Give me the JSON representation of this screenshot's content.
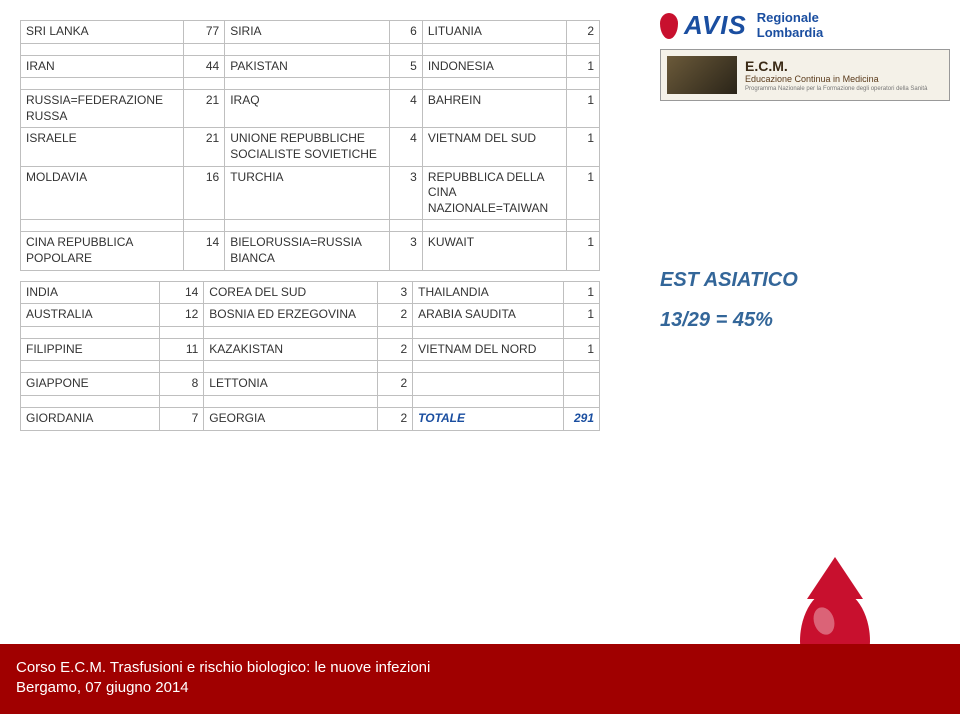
{
  "tables": {
    "upper": {
      "rows": [
        [
          "SRI LANKA",
          "77",
          "SIRIA",
          "6",
          "LITUANIA",
          "2"
        ],
        [
          "",
          "",
          "",
          "",
          "",
          ""
        ],
        [
          "IRAN",
          "44",
          "PAKISTAN",
          "5",
          "INDONESIA",
          "1"
        ],
        [
          "",
          "",
          "",
          "",
          "",
          ""
        ],
        [
          "RUSSIA=FEDERAZIONE RUSSA",
          "21",
          "IRAQ",
          "4",
          "BAHREIN",
          "1"
        ],
        [
          "ISRAELE",
          "21",
          "UNIONE REPUBBLICHE SOCIALISTE SOVIETICHE",
          "4",
          "VIETNAM DEL SUD",
          "1"
        ],
        [
          "MOLDAVIA",
          "16",
          "TURCHIA",
          "3",
          "REPUBBLICA DELLA CINA NAZIONALE=TAIWAN",
          "1"
        ],
        [
          "",
          "",
          "",
          "",
          "",
          ""
        ],
        [
          "CINA REPUBBLICA POPOLARE",
          "14",
          "BIELORUSSIA=RUSSIA BIANCA",
          "3",
          "KUWAIT",
          "1"
        ]
      ]
    },
    "lower": {
      "rows": [
        [
          "INDIA",
          "14",
          "COREA DEL SUD",
          "3",
          "THAILANDIA",
          "1"
        ],
        [
          "AUSTRALIA",
          "12",
          "BOSNIA ED ERZEGOVINA",
          "2",
          "ARABIA SAUDITA",
          "1"
        ],
        [
          "",
          "",
          "",
          "",
          "",
          ""
        ],
        [
          "FILIPPINE",
          "11",
          "KAZAKISTAN",
          "2",
          "VIETNAM DEL NORD",
          "1"
        ],
        [
          "",
          "",
          "",
          "",
          "",
          ""
        ],
        [
          "GIAPPONE",
          "8",
          "LETTONIA",
          "2",
          "",
          ""
        ],
        [
          "",
          "",
          "",
          "",
          "",
          ""
        ],
        [
          "GIORDANIA",
          "7",
          "GEORGIA",
          "2",
          "TOTALE",
          "291"
        ]
      ]
    },
    "col_widths": [
      "120px",
      "38px",
      "150px",
      "30px",
      "130px",
      "30px"
    ]
  },
  "callout": {
    "line1": "EST ASIATICO",
    "line2": "13/29 = 45%",
    "color": "#336699"
  },
  "logos": {
    "avis": "AVIS",
    "regionale": "Regionale",
    "lombardia": "Lombardia",
    "ecm_title": "E.C.M.",
    "ecm_sub": "Educazione Continua in Medicina",
    "ecm_foot": "Programma Nazionale per la Formazione degli operatori della Sanità"
  },
  "footer": {
    "line1": "Corso E.C.M. Trasfusioni e rischio biologico: le nuove infezioni",
    "line2": "Bergamo, 07 giugno 2014"
  },
  "colors": {
    "border": "#bfbfbf",
    "text": "#333333",
    "accent_blue": "#336699",
    "footer_bg": "#a00000",
    "drop_red": "#c8102e",
    "avis_blue": "#1a4ea0",
    "total_color": "#1a4ea0"
  }
}
